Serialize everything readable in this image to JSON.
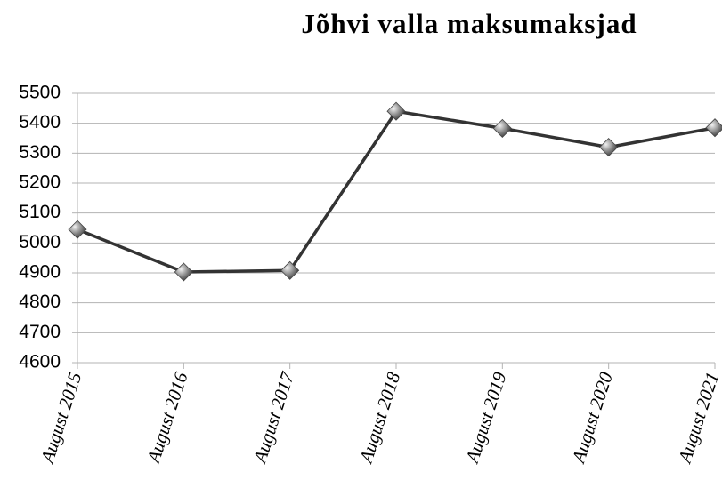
{
  "chart_data": {
    "type": "line",
    "title": "Jõhvi valla maksumaksjad",
    "categories": [
      "August 2015",
      "August 2016",
      "August 2017",
      "August 2018",
      "August 2019",
      "August 2020",
      "August 2021"
    ],
    "values": [
      5045,
      4903,
      4908,
      5440,
      5383,
      5320,
      5385
    ],
    "color": "#333333",
    "ylim": [
      4600,
      5500
    ],
    "yticks": [
      4600,
      4700,
      4800,
      4900,
      5000,
      5100,
      5200,
      5300,
      5400,
      5500
    ],
    "grid": true
  }
}
